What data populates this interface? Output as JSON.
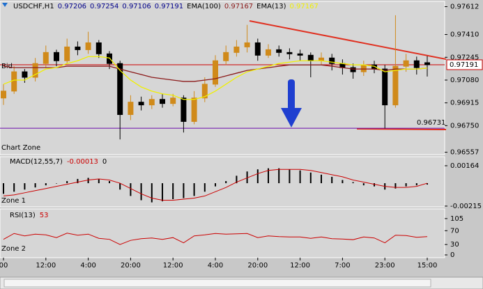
{
  "chart_data": [
    {
      "type": "candlestick",
      "title": "USDCHF,H1",
      "quote": [
        0.97206,
        0.97254,
        0.97106,
        0.97191
      ],
      "quote_color": "#00008b",
      "indicators": [
        {
          "name": "EMA(100)",
          "value": 0.97167,
          "color": "#8b1a1a",
          "values": [
            0.9718,
            0.9717,
            0.9717,
            0.9717,
            0.9717,
            0.9717,
            0.9718,
            0.9718,
            0.9718,
            0.9718,
            0.9718,
            0.9716,
            0.9714,
            0.9712,
            0.971,
            0.9709,
            0.9708,
            0.9707,
            0.9707,
            0.9708,
            0.9709,
            0.9711,
            0.9713,
            0.9715,
            0.9716,
            0.9717,
            0.9718,
            0.9719,
            0.9719,
            0.9719,
            0.9719,
            0.9718,
            0.9717,
            0.9716,
            0.9716,
            0.9716,
            0.9715,
            0.9716,
            0.9716,
            0.9716,
            0.97167
          ]
        },
        {
          "name": "EMA(13)",
          "value": 0.97167,
          "color": "#f0f000",
          "values": [
            0.9705,
            0.9708,
            0.9708,
            0.9712,
            0.9716,
            0.9717,
            0.972,
            0.9722,
            0.9725,
            0.9725,
            0.9724,
            0.9715,
            0.9708,
            0.9703,
            0.97,
            0.9698,
            0.9697,
            0.9694,
            0.9694,
            0.9696,
            0.97,
            0.9705,
            0.971,
            0.9714,
            0.9716,
            0.9718,
            0.972,
            0.9721,
            0.9722,
            0.9722,
            0.9722,
            0.9721,
            0.972,
            0.9719,
            0.9719,
            0.9718,
            0.9714,
            0.9715,
            0.9716,
            0.9716,
            0.97167
          ]
        }
      ],
      "open": [
        0.9695,
        0.97,
        0.9714,
        0.971,
        0.972,
        0.9728,
        0.9722,
        0.9732,
        0.973,
        0.9735,
        0.9727,
        0.972,
        0.9683,
        0.9692,
        0.969,
        0.9694,
        0.9691,
        0.9695,
        0.9678,
        0.9695,
        0.9705,
        0.9722,
        0.9728,
        0.9732,
        0.9735,
        0.9726,
        0.973,
        0.9728,
        0.9727,
        0.9726,
        0.9722,
        0.9724,
        0.972,
        0.9717,
        0.9714,
        0.9719,
        0.9716,
        0.969,
        0.9718,
        0.9722,
        0.97206
      ],
      "high": [
        0.9705,
        0.9718,
        0.9716,
        0.9724,
        0.9733,
        0.973,
        0.9738,
        0.9736,
        0.9743,
        0.9737,
        0.9729,
        0.9722,
        0.9697,
        0.9696,
        0.9697,
        0.9698,
        0.9698,
        0.9697,
        0.97,
        0.971,
        0.9726,
        0.9733,
        0.9737,
        0.9748,
        0.9738,
        0.9734,
        0.9733,
        0.9731,
        0.973,
        0.9728,
        0.9728,
        0.9727,
        0.9723,
        0.972,
        0.9722,
        0.9722,
        0.9719,
        0.9755,
        0.9727,
        0.9725,
        0.97254
      ],
      "low": [
        0.969,
        0.9698,
        0.9706,
        0.9707,
        0.9717,
        0.9718,
        0.972,
        0.9726,
        0.9727,
        0.9724,
        0.9716,
        0.9665,
        0.9679,
        0.9686,
        0.9687,
        0.9688,
        0.9689,
        0.967,
        0.9676,
        0.9692,
        0.9703,
        0.9719,
        0.9725,
        0.9728,
        0.9722,
        0.9724,
        0.9725,
        0.9723,
        0.9722,
        0.971,
        0.9719,
        0.9715,
        0.9712,
        0.9709,
        0.9711,
        0.9713,
        0.9673,
        0.9688,
        0.9714,
        0.9712,
        0.97106
      ],
      "close": [
        0.97,
        0.9714,
        0.971,
        0.972,
        0.9728,
        0.9722,
        0.9732,
        0.973,
        0.9735,
        0.9727,
        0.972,
        0.9683,
        0.9692,
        0.969,
        0.9694,
        0.9691,
        0.9695,
        0.9678,
        0.9695,
        0.9705,
        0.9722,
        0.9728,
        0.9732,
        0.9735,
        0.9726,
        0.973,
        0.9728,
        0.9727,
        0.9726,
        0.9722,
        0.9724,
        0.972,
        0.9717,
        0.9714,
        0.9719,
        0.9716,
        0.969,
        0.9718,
        0.9722,
        0.9717,
        0.97191
      ],
      "up_color": "#d08a1a",
      "down_color": "#000000",
      "bid_label": "Bid",
      "bid": 0.97191,
      "bid_color": "#cc0000",
      "level": 0.96731,
      "level_color": "#6a0dad",
      "zone_label": "Chart Zone",
      "ylim": [
        0.9654,
        0.9765
      ],
      "yticks": [
        0.97612,
        {
          "value": 0.9741,
          "label": "0.97410"
        },
        0.97245,
        {
          "value": 0.9708,
          "label": "0.97080"
        },
        0.96915,
        {
          "value": 0.9675,
          "label": "0.96750"
        },
        0.96557
      ]
    },
    {
      "type": "macd",
      "title": "MACD(12,55,7)",
      "header_values": [
        -0.00013,
        0
      ],
      "header_color": "#cc0000",
      "histogram": {
        "color": "#000000",
        "values": [
          -0.001,
          -0.0008,
          -0.0006,
          -0.0004,
          -0.0002,
          0,
          0.0002,
          0.0004,
          0.0005,
          0.0004,
          0.0002,
          -0.0006,
          -0.0012,
          -0.0016,
          -0.0018,
          -0.0017,
          -0.0015,
          -0.0014,
          -0.0012,
          -0.0008,
          -0.0003,
          0.0002,
          0.0007,
          0.0011,
          0.0013,
          0.0014,
          0.0014,
          0.0013,
          0.0012,
          0.001,
          0.0008,
          0.0006,
          0.0003,
          0.0001,
          -0.0002,
          -0.0003,
          -0.0006,
          -0.0005,
          -0.0003,
          -0.0002,
          -0.00013
        ]
      },
      "signal": {
        "color": "#cc0000",
        "values": [
          -0.0012,
          -0.0011,
          -0.0009,
          -0.0007,
          -0.0005,
          -0.0003,
          -0.0001,
          0.0001,
          0.0003,
          0.0004,
          0.0003,
          0,
          -0.0005,
          -0.001,
          -0.0014,
          -0.0016,
          -0.0016,
          -0.0015,
          -0.0014,
          -0.0012,
          -0.0008,
          -0.0004,
          0.0001,
          0.0005,
          0.0009,
          0.0012,
          0.0013,
          0.0013,
          0.0013,
          0.0012,
          0.001,
          0.0008,
          0.0006,
          0.0003,
          0.0001,
          -0.0001,
          -0.0003,
          -0.0004,
          -0.0004,
          -0.0003,
          0
        ]
      },
      "zone_label": "Zone 1",
      "ylim": [
        -0.00222,
        0.00249
      ],
      "yticks": [
        0.00164,
        -0.00215
      ]
    },
    {
      "type": "line",
      "title": "RSI(13)",
      "value": 53,
      "color": "#cc0000",
      "values": [
        45,
        62,
        55,
        60,
        58,
        50,
        63,
        57,
        60,
        48,
        45,
        30,
        42,
        47,
        49,
        45,
        50,
        35,
        55,
        58,
        62,
        60,
        61,
        62,
        50,
        55,
        53,
        52,
        52,
        48,
        52,
        47,
        46,
        44,
        52,
        49,
        35,
        57,
        56,
        51,
        53
      ],
      "zone_label": "Zone 2",
      "ylim": [
        -8,
        133
      ],
      "yticks": [
        105,
        70,
        30,
        0
      ],
      "categories": [
        "00",
        null,
        null,
        null,
        "12:00",
        null,
        null,
        null,
        "4:00",
        null,
        null,
        null,
        "20:00",
        null,
        null,
        null,
        "12:00",
        null,
        null,
        null,
        "4:00",
        null,
        null,
        null,
        "20:00",
        null,
        null,
        null,
        "12:00",
        null,
        null,
        null,
        "7:00",
        null,
        null,
        null,
        "23:00",
        null,
        null,
        null,
        "15:00"
      ]
    }
  ]
}
